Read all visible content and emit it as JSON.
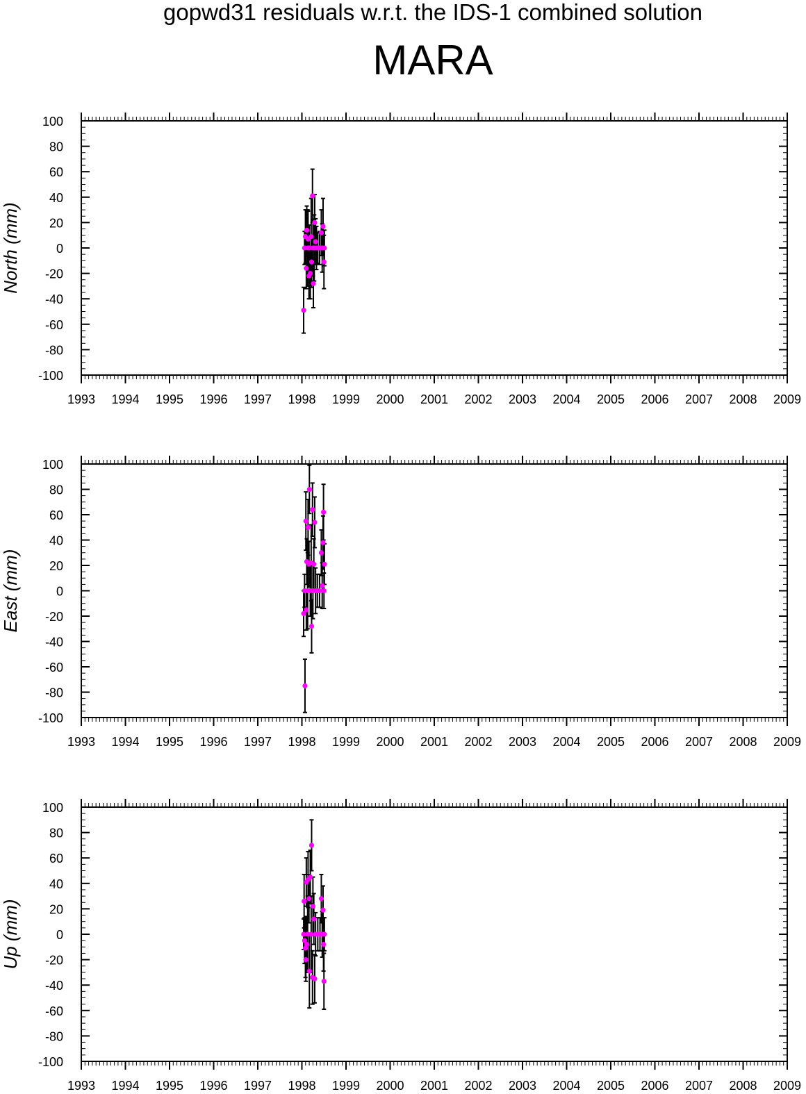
{
  "figure": {
    "title": "gopwd31 residuals w.r.t. the IDS-1 combined solution",
    "station": "MARA",
    "colors": {
      "marker": "#ff00ff",
      "errorbar": "#000000",
      "frame": "#000000"
    }
  },
  "chart_data": [
    {
      "type": "scatter",
      "ylabel": "North (mm)",
      "xlim": [
        1993,
        2009
      ],
      "ylim": [
        -100,
        100
      ],
      "xticks": [
        "1993",
        "1994",
        "1995",
        "1996",
        "1997",
        "1998",
        "1999",
        "2000",
        "2001",
        "2002",
        "2003",
        "2004",
        "2005",
        "2006",
        "2007",
        "2008",
        "2009"
      ],
      "yticks": [
        "100",
        "80",
        "60",
        "40",
        "20",
        "0",
        "-20",
        "-40",
        "-60",
        "-80",
        "-100"
      ],
      "grid": false,
      "points": [
        {
          "x": 1998.04,
          "y": -49,
          "err": 18
        },
        {
          "x": 1998.06,
          "y": 0,
          "err": 13
        },
        {
          "x": 1998.08,
          "y": 9,
          "err": 21
        },
        {
          "x": 1998.1,
          "y": -16,
          "err": 16
        },
        {
          "x": 1998.11,
          "y": 14,
          "err": 19
        },
        {
          "x": 1998.13,
          "y": 0,
          "err": 30
        },
        {
          "x": 1998.14,
          "y": 7,
          "err": 22
        },
        {
          "x": 1998.16,
          "y": -22,
          "err": 18
        },
        {
          "x": 1998.17,
          "y": 0,
          "err": 18
        },
        {
          "x": 1998.19,
          "y": -20,
          "err": 20
        },
        {
          "x": 1998.21,
          "y": 9,
          "err": 30
        },
        {
          "x": 1998.22,
          "y": -11,
          "err": 20
        },
        {
          "x": 1998.24,
          "y": 41,
          "err": 21
        },
        {
          "x": 1998.25,
          "y": 0,
          "err": 22
        },
        {
          "x": 1998.26,
          "y": -28,
          "err": 19
        },
        {
          "x": 1998.28,
          "y": 0,
          "err": 26
        },
        {
          "x": 1998.29,
          "y": 20,
          "err": 22
        },
        {
          "x": 1998.31,
          "y": 5,
          "err": 18
        },
        {
          "x": 1998.33,
          "y": 0,
          "err": 17
        },
        {
          "x": 1998.36,
          "y": 0,
          "err": 12
        },
        {
          "x": 1998.4,
          "y": 0,
          "err": 13
        },
        {
          "x": 1998.44,
          "y": 12,
          "err": 18
        },
        {
          "x": 1998.46,
          "y": 0,
          "err": 19
        },
        {
          "x": 1998.48,
          "y": 17,
          "err": 22
        },
        {
          "x": 1998.5,
          "y": -11,
          "err": 21
        },
        {
          "x": 1998.51,
          "y": 0,
          "err": 14
        }
      ]
    },
    {
      "type": "scatter",
      "ylabel": "East (mm)",
      "xlim": [
        1993,
        2009
      ],
      "ylim": [
        -100,
        100
      ],
      "xticks": [
        "1993",
        "1994",
        "1995",
        "1996",
        "1997",
        "1998",
        "1999",
        "2000",
        "2001",
        "2002",
        "2003",
        "2004",
        "2005",
        "2006",
        "2007",
        "2008",
        "2009"
      ],
      "yticks": [
        "100",
        "80",
        "60",
        "40",
        "20",
        "0",
        "-20",
        "-40",
        "-60",
        "-80",
        "-100"
      ],
      "grid": false,
      "points": [
        {
          "x": 1998.04,
          "y": -18,
          "err": 18
        },
        {
          "x": 1998.06,
          "y": 0,
          "err": 13
        },
        {
          "x": 1998.07,
          "y": -75,
          "err": 21
        },
        {
          "x": 1998.09,
          "y": 55,
          "err": 23
        },
        {
          "x": 1998.1,
          "y": -15,
          "err": 16
        },
        {
          "x": 1998.11,
          "y": 23,
          "err": 18
        },
        {
          "x": 1998.13,
          "y": 0,
          "err": 30
        },
        {
          "x": 1998.14,
          "y": 50,
          "err": 22
        },
        {
          "x": 1998.16,
          "y": 21,
          "err": 18
        },
        {
          "x": 1998.17,
          "y": 80,
          "err": 19
        },
        {
          "x": 1998.19,
          "y": 0,
          "err": 20
        },
        {
          "x": 1998.21,
          "y": 22,
          "err": 30
        },
        {
          "x": 1998.22,
          "y": -28,
          "err": 21
        },
        {
          "x": 1998.24,
          "y": 64,
          "err": 21
        },
        {
          "x": 1998.25,
          "y": 0,
          "err": 22
        },
        {
          "x": 1998.27,
          "y": 21,
          "err": 20
        },
        {
          "x": 1998.29,
          "y": 54,
          "err": 20
        },
        {
          "x": 1998.31,
          "y": 0,
          "err": 18
        },
        {
          "x": 1998.35,
          "y": 0,
          "err": 13
        },
        {
          "x": 1998.4,
          "y": 0,
          "err": 13
        },
        {
          "x": 1998.44,
          "y": 30,
          "err": 18
        },
        {
          "x": 1998.46,
          "y": 4,
          "err": 18
        },
        {
          "x": 1998.48,
          "y": 38,
          "err": 21
        },
        {
          "x": 1998.49,
          "y": 62,
          "err": 22
        },
        {
          "x": 1998.5,
          "y": 0,
          "err": 14
        },
        {
          "x": 1998.51,
          "y": 21,
          "err": 16
        }
      ]
    },
    {
      "type": "scatter",
      "ylabel": "Up (mm)",
      "xlim": [
        1993,
        2009
      ],
      "ylim": [
        -100,
        100
      ],
      "xticks": [
        "1993",
        "1994",
        "1995",
        "1996",
        "1997",
        "1998",
        "1999",
        "2000",
        "2001",
        "2002",
        "2003",
        "2004",
        "2005",
        "2006",
        "2007",
        "2008",
        "2009"
      ],
      "yticks": [
        "100",
        "80",
        "60",
        "40",
        "20",
        "0",
        "-20",
        "-40",
        "-60",
        "-80",
        "-100"
      ],
      "grid": false,
      "points": [
        {
          "x": 1998.04,
          "y": 0,
          "err": 12
        },
        {
          "x": 1998.05,
          "y": 26,
          "err": 21
        },
        {
          "x": 1998.06,
          "y": -5,
          "err": 18
        },
        {
          "x": 1998.08,
          "y": -11,
          "err": 23
        },
        {
          "x": 1998.09,
          "y": -20,
          "err": 17
        },
        {
          "x": 1998.1,
          "y": 41,
          "err": 19
        },
        {
          "x": 1998.11,
          "y": -8,
          "err": 22
        },
        {
          "x": 1998.13,
          "y": 0,
          "err": 30
        },
        {
          "x": 1998.14,
          "y": 43,
          "err": 22
        },
        {
          "x": 1998.16,
          "y": 28,
          "err": 19
        },
        {
          "x": 1998.17,
          "y": -29,
          "err": 29
        },
        {
          "x": 1998.19,
          "y": 45,
          "err": 21
        },
        {
          "x": 1998.21,
          "y": 0,
          "err": 30
        },
        {
          "x": 1998.22,
          "y": 70,
          "err": 20
        },
        {
          "x": 1998.24,
          "y": -34,
          "err": 21
        },
        {
          "x": 1998.25,
          "y": 22,
          "err": 23
        },
        {
          "x": 1998.27,
          "y": 12,
          "err": 20
        },
        {
          "x": 1998.29,
          "y": -35,
          "err": 19
        },
        {
          "x": 1998.31,
          "y": 0,
          "err": 17
        },
        {
          "x": 1998.36,
          "y": 0,
          "err": 13
        },
        {
          "x": 1998.41,
          "y": 0,
          "err": 13
        },
        {
          "x": 1998.44,
          "y": 28,
          "err": 19
        },
        {
          "x": 1998.46,
          "y": 0,
          "err": 18
        },
        {
          "x": 1998.48,
          "y": 19,
          "err": 19
        },
        {
          "x": 1998.49,
          "y": -8,
          "err": 21
        },
        {
          "x": 1998.5,
          "y": -37,
          "err": 22
        },
        {
          "x": 1998.51,
          "y": 0,
          "err": 13
        }
      ]
    }
  ]
}
